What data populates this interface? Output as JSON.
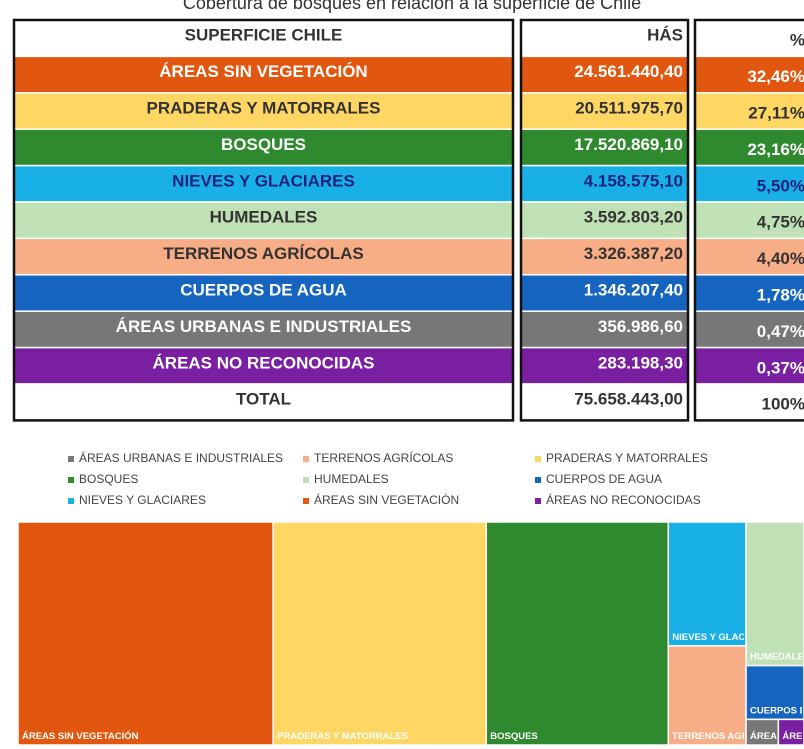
{
  "title": "Cobertura de bosques en relación a la superficie de Chile",
  "table": {
    "header": [
      "SUPERFICIE CHILE",
      "HÁS",
      "%"
    ],
    "rows": [
      [
        "ÁREAS SIN VEGETACIÓN",
        "24.561.440,40",
        "32,46%"
      ],
      [
        "PRADERAS Y MATORRALES",
        "20.511.975,70",
        "27,11%"
      ],
      [
        "BOSQUES",
        "17.520.869,10",
        "23,16%"
      ],
      [
        "NIEVES Y GLACIARES",
        "4.158.575,10",
        "5,50%"
      ],
      [
        "HUMEDALES",
        "3.592.803,20",
        "4,75%"
      ],
      [
        "TERRENOS AGRÍCOLAS",
        "3.326.387,20",
        "4,40%"
      ],
      [
        "CUERPOS DE AGUA",
        "1.346.207,40",
        "1,78%"
      ],
      [
        "ÁREAS URBANAS E INDUSTRIALES",
        "356.986,60",
        "0,47%"
      ],
      [
        "ÁREAS NO RECONOCIDAS",
        "283.198,30",
        "0,37%"
      ]
    ],
    "text_colors": [
      "#ffffff",
      "#333333",
      "#ffffff",
      "#1a237e",
      "#333333",
      "#333333",
      "#ffffff",
      "#ffffff",
      "#ffffff"
    ],
    "total": [
      "TOTAL",
      "75.658.443,00",
      "100%"
    ]
  },
  "chart_data": {
    "type": "treemap",
    "categories": [
      "ÁREAS SIN VEGETACIÓN",
      "PRADERAS Y MATORRALES",
      "BOSQUES",
      "NIEVES Y GLACIARES",
      "HUMEDALES",
      "TERRENOS AGRÍCOLAS",
      "CUERPOS DE AGUA",
      "ÁREAS URBANAS E INDUSTRIALES",
      "ÁREAS NO RECONOCIDAS"
    ],
    "values": [
      24561440.4,
      20511975.7,
      17520869.1,
      4158575.1,
      3592803.2,
      3326387.2,
      1346207.4,
      356986.6,
      283198.3
    ],
    "colors": [
      "#e2570f",
      "#fdd663",
      "#2f8a2f",
      "#19b0e8",
      "#bfe1b5",
      "#f7ad86",
      "#1565c0",
      "#777777",
      "#7b1fa2"
    ]
  }
}
